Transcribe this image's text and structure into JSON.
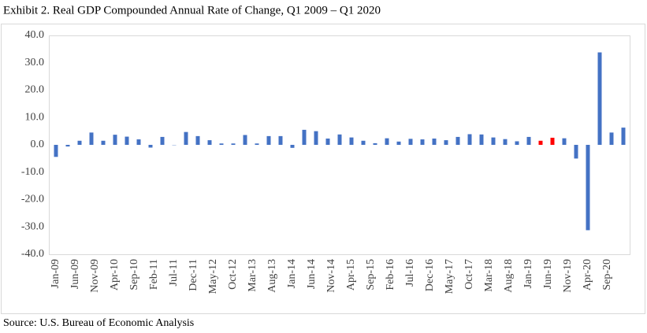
{
  "chart_data": {
    "type": "bar",
    "title": "Exhibit 2. Real GDP Compounded Annual Rate of Change, Q1 2009 – Q1 2020",
    "source": "Source: U.S. Bureau of Economic Analysis",
    "categories": [
      "Jan-09",
      null,
      null,
      null,
      null,
      "Jun-09",
      null,
      null,
      null,
      null,
      "Nov-09",
      null,
      null,
      null,
      null,
      "Apr-10",
      null,
      null,
      null,
      null,
      "Sep-10",
      null,
      null,
      null,
      null,
      "Feb-11",
      null,
      null,
      null,
      null,
      "Jul-11",
      null,
      null,
      null,
      null,
      "Dec-11",
      null,
      null,
      null,
      null,
      "May-12",
      null,
      null,
      null,
      null,
      "Oct-12",
      null,
      null,
      null,
      null,
      "Mar-13",
      null,
      null,
      null,
      null,
      "Aug-13",
      null,
      null,
      null,
      null,
      "Jan-14",
      null,
      null,
      null,
      null,
      "Jun-14",
      null,
      null,
      null,
      null,
      "Nov-14",
      null,
      null,
      null,
      null,
      "Apr-15",
      null,
      null,
      null,
      null,
      "Sep-15",
      null,
      null,
      null,
      null,
      "Feb-16",
      null,
      null,
      null,
      null,
      "Jul-16",
      null,
      null,
      null,
      null,
      "Dec-16",
      null,
      null,
      null,
      null,
      "May-17",
      null,
      null,
      null,
      null,
      "Oct-17",
      null,
      null,
      null,
      null,
      "Mar-18",
      null,
      null,
      null,
      null,
      "Aug-18",
      null,
      null,
      null,
      null,
      "Jan-19",
      null,
      null,
      null,
      null,
      "Jun-19",
      null,
      null,
      null,
      null,
      "Nov-19",
      null,
      null,
      null,
      null,
      "Apr-20",
      null,
      null,
      null,
      null,
      "Sep-20",
      null,
      null,
      null,
      null
    ],
    "values": [
      -4.4,
      null,
      null,
      -0.6,
      null,
      null,
      1.5,
      null,
      null,
      4.5,
      null,
      null,
      1.5,
      null,
      null,
      3.7,
      null,
      null,
      3.0,
      null,
      null,
      2.0,
      null,
      null,
      -1.0,
      null,
      null,
      2.9,
      null,
      null,
      -0.1,
      null,
      null,
      4.7,
      null,
      null,
      3.2,
      null,
      null,
      1.7,
      null,
      null,
      0.5,
      null,
      null,
      0.5,
      null,
      null,
      3.6,
      null,
      null,
      0.5,
      null,
      null,
      3.2,
      null,
      null,
      3.2,
      null,
      null,
      -1.1,
      null,
      null,
      5.5,
      null,
      null,
      5.0,
      null,
      null,
      2.3,
      null,
      null,
      3.8,
      null,
      null,
      2.7,
      null,
      null,
      1.5,
      null,
      null,
      0.6,
      null,
      null,
      2.4,
      null,
      null,
      1.2,
      null,
      null,
      2.2,
      null,
      null,
      2.0,
      null,
      null,
      2.3,
      null,
      null,
      1.7,
      null,
      null,
      2.9,
      null,
      null,
      3.9,
      null,
      null,
      3.8,
      null,
      null,
      2.7,
      null,
      null,
      2.1,
      null,
      null,
      1.3,
      null,
      null,
      2.9,
      null,
      null,
      1.5,
      null,
      null,
      2.6,
      null,
      null,
      2.4,
      null,
      null,
      -5.0,
      null,
      null,
      -31.2,
      null,
      null,
      33.8,
      null,
      null,
      4.5,
      null,
      null,
      6.3
    ],
    "colors": [
      "#4472c4",
      null,
      null,
      "#4472c4",
      null,
      null,
      "#4472c4",
      null,
      null,
      "#4472c4",
      null,
      null,
      "#4472c4",
      null,
      null,
      "#4472c4",
      null,
      null,
      "#4472c4",
      null,
      null,
      "#4472c4",
      null,
      null,
      "#4472c4",
      null,
      null,
      "#4472c4",
      null,
      null,
      "#4472c4",
      null,
      null,
      "#4472c4",
      null,
      null,
      "#4472c4",
      null,
      null,
      "#4472c4",
      null,
      null,
      "#4472c4",
      null,
      null,
      "#4472c4",
      null,
      null,
      "#4472c4",
      null,
      null,
      "#4472c4",
      null,
      null,
      "#4472c4",
      null,
      null,
      "#4472c4",
      null,
      null,
      "#4472c4",
      null,
      null,
      "#4472c4",
      null,
      null,
      "#4472c4",
      null,
      null,
      "#4472c4",
      null,
      null,
      "#4472c4",
      null,
      null,
      "#4472c4",
      null,
      null,
      "#4472c4",
      null,
      null,
      "#4472c4",
      null,
      null,
      "#4472c4",
      null,
      null,
      "#4472c4",
      null,
      null,
      "#4472c4",
      null,
      null,
      "#4472c4",
      null,
      null,
      "#4472c4",
      null,
      null,
      "#4472c4",
      null,
      null,
      "#4472c4",
      null,
      null,
      "#4472c4",
      null,
      null,
      "#4472c4",
      null,
      null,
      "#4472c4",
      null,
      null,
      "#4472c4",
      null,
      null,
      "#4472c4",
      null,
      null,
      "#4472c4",
      null,
      null,
      "#ff0000",
      null,
      null,
      "#ff0000",
      null,
      null,
      "#4472c4",
      null,
      null,
      "#4472c4",
      null,
      null,
      "#4472c4",
      null,
      null,
      "#4472c4",
      null,
      null,
      "#4472c4",
      null,
      null,
      "#4472c4"
    ],
    "ylim": [
      -40,
      40
    ],
    "yticks": [
      {
        "value": -40,
        "label": "-40.0"
      },
      {
        "value": -30,
        "label": "-30.0"
      },
      {
        "value": -20,
        "label": "-20.0"
      },
      {
        "value": -10,
        "label": "-10.0"
      },
      {
        "value": 0,
        "label": "0.0"
      },
      {
        "value": 10,
        "label": "10.0"
      },
      {
        "value": 20,
        "label": "20.0"
      },
      {
        "value": 30,
        "label": "30.0"
      },
      {
        "value": 40,
        "label": "40.0"
      }
    ],
    "grid": false
  }
}
